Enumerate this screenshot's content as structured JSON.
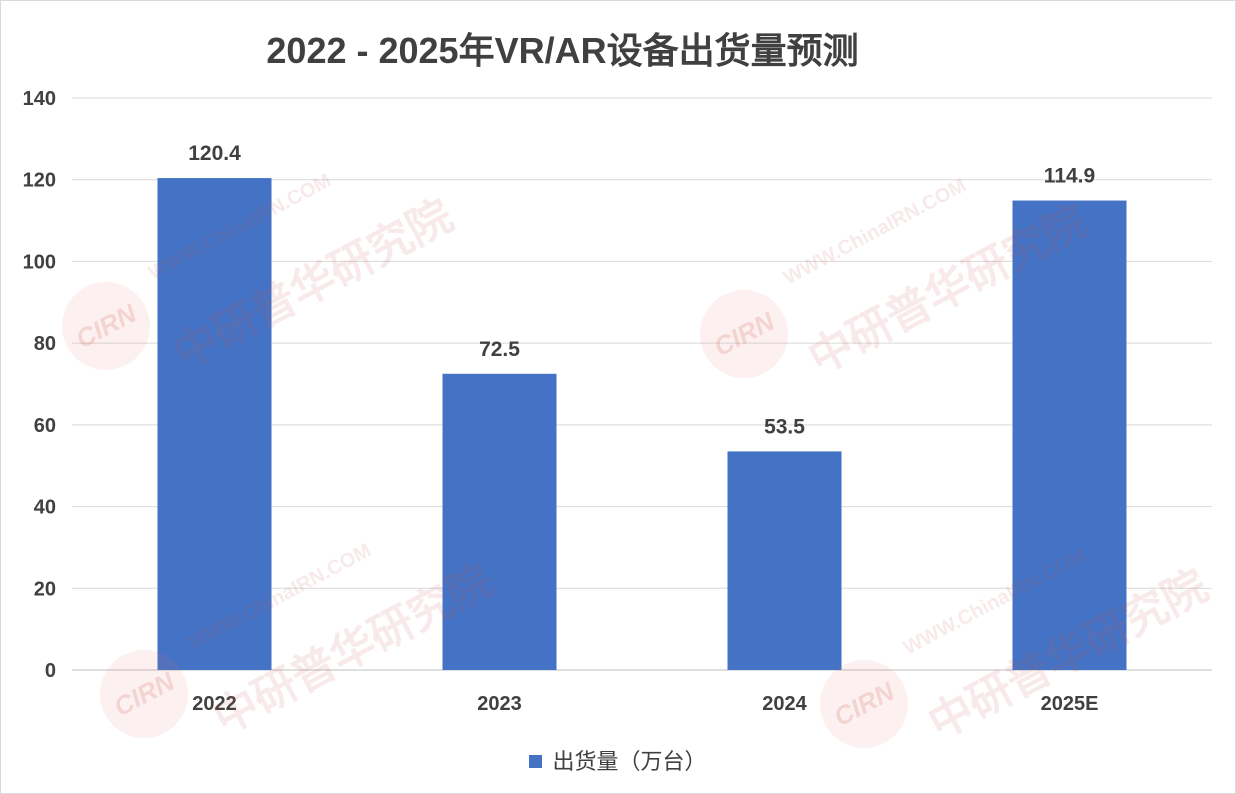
{
  "chart_data": {
    "type": "bar",
    "title": "2022 - 2025年VR/AR设备出货量预测",
    "categories": [
      "2022",
      "2023",
      "2024",
      "2025E"
    ],
    "series": [
      {
        "name": "出货量（万台）",
        "values": [
          120.4,
          72.5,
          53.5,
          114.9
        ],
        "color": "#4472c4"
      }
    ],
    "ylim": [
      0,
      140
    ],
    "yticks": [
      0,
      20,
      40,
      60,
      80,
      100,
      120,
      140
    ],
    "grid": true,
    "legend": "bottom-center",
    "data_labels": true
  },
  "watermark": {
    "logo": "CIRN",
    "url": "WWW.ChinaIRN.COM",
    "name": "中研普华研究院"
  }
}
